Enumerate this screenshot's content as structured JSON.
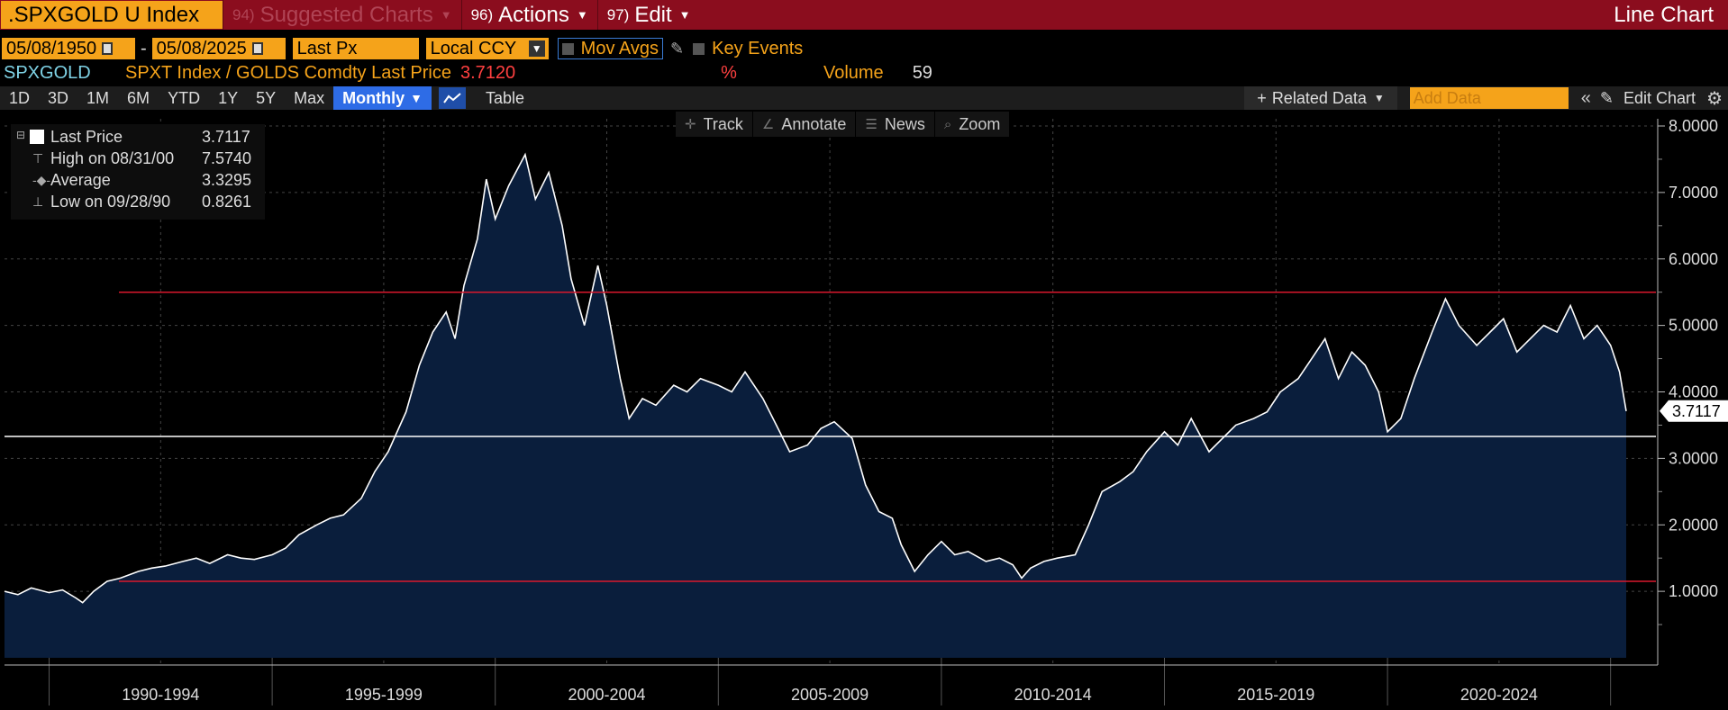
{
  "topbar": {
    "ticker": ".SPXGOLD U Index",
    "suggested": {
      "num": "94)",
      "label": "Suggested Charts"
    },
    "actions": {
      "num": "96)",
      "label": "Actions"
    },
    "edit": {
      "num": "97)",
      "label": "Edit"
    },
    "chart_type": "Line Chart"
  },
  "controls": {
    "start_date": "05/08/1950",
    "dash": "-",
    "end_date": "05/08/2025",
    "price_field": "Last Px",
    "currency": "Local CCY",
    "mov_avgs": "Mov Avgs",
    "key_events": "Key Events"
  },
  "security": {
    "code": "SPXGOLD",
    "description": "SPXT Index / GOLDS Comdty Last Price",
    "last_value": "3.7120",
    "pct": "%",
    "volume_label": "Volume",
    "volume_value": "59"
  },
  "toolbar": {
    "periods": [
      "1D",
      "3D",
      "1M",
      "6M",
      "YTD",
      "1Y",
      "5Y",
      "Max"
    ],
    "frequency": "Monthly",
    "table": "Table",
    "related_data": "Related Data",
    "add_data_placeholder": "Add Data",
    "edit_chart": "Edit Chart"
  },
  "chart_tools": [
    "Track",
    "Annotate",
    "News",
    "Zoom"
  ],
  "legend": {
    "last_price": {
      "label": "Last Price",
      "value": "3.7117"
    },
    "high": {
      "label": "High on 08/31/00",
      "value": "7.5740"
    },
    "average": {
      "label": "Average",
      "value": "3.3295"
    },
    "low": {
      "label": "Low on 09/28/90",
      "value": "0.8261"
    }
  },
  "colors": {
    "line": "#ffffff",
    "area": "#0a1e3c",
    "average_line": "#ffffff",
    "high_low_lines": "#d9182d",
    "accent_orange": "#f5a31a",
    "header_red": "#8b0d1e"
  },
  "chart_data": {
    "type": "area",
    "series": [
      {
        "name": "Last Price",
        "x": [
          1989.0,
          1989.3,
          1989.6,
          1990.0,
          1990.3,
          1990.6,
          1990.75,
          1991.0,
          1991.3,
          1991.6,
          1992.0,
          1992.3,
          1992.6,
          1993.0,
          1993.3,
          1993.6,
          1994.0,
          1994.3,
          1994.6,
          1995.0,
          1995.3,
          1995.6,
          1996.0,
          1996.3,
          1996.6,
          1997.0,
          1997.3,
          1997.6,
          1998.0,
          1998.3,
          1998.6,
          1998.9,
          1999.1,
          1999.3,
          1999.6,
          1999.8,
          2000.0,
          2000.3,
          2000.67,
          2000.9,
          2001.2,
          2001.5,
          2001.7,
          2002.0,
          2002.3,
          2002.5,
          2002.8,
          2003.0,
          2003.3,
          2003.6,
          2004.0,
          2004.3,
          2004.6,
          2005.0,
          2005.3,
          2005.6,
          2006.0,
          2006.3,
          2006.6,
          2007.0,
          2007.3,
          2007.6,
          2008.0,
          2008.3,
          2008.6,
          2008.9,
          2009.1,
          2009.4,
          2009.7,
          2010.0,
          2010.3,
          2010.6,
          2011.0,
          2011.3,
          2011.6,
          2011.8,
          2012.0,
          2012.3,
          2012.6,
          2013.0,
          2013.3,
          2013.6,
          2014.0,
          2014.3,
          2014.6,
          2015.0,
          2015.3,
          2015.6,
          2016.0,
          2016.3,
          2016.6,
          2017.0,
          2017.3,
          2017.6,
          2018.0,
          2018.3,
          2018.6,
          2018.9,
          2019.2,
          2019.5,
          2019.8,
          2020.0,
          2020.3,
          2020.6,
          2021.0,
          2021.3,
          2021.6,
          2022.0,
          2022.3,
          2022.6,
          2022.9,
          2023.2,
          2023.5,
          2023.8,
          2024.1,
          2024.4,
          2024.7,
          2025.0,
          2025.2,
          2025.35
        ],
        "y": [
          1.0,
          0.95,
          1.05,
          0.98,
          1.02,
          0.9,
          0.83,
          1.0,
          1.15,
          1.2,
          1.3,
          1.35,
          1.38,
          1.45,
          1.5,
          1.42,
          1.55,
          1.5,
          1.48,
          1.55,
          1.65,
          1.85,
          2.0,
          2.1,
          2.15,
          2.4,
          2.8,
          3.1,
          3.7,
          4.4,
          4.9,
          5.2,
          4.8,
          5.6,
          6.3,
          7.2,
          6.6,
          7.1,
          7.57,
          6.9,
          7.3,
          6.5,
          5.7,
          5.0,
          5.9,
          5.3,
          4.2,
          3.6,
          3.9,
          3.8,
          4.1,
          4.0,
          4.2,
          4.1,
          4.0,
          4.3,
          3.9,
          3.5,
          3.1,
          3.2,
          3.45,
          3.55,
          3.3,
          2.6,
          2.2,
          2.1,
          1.7,
          1.3,
          1.55,
          1.75,
          1.55,
          1.6,
          1.45,
          1.5,
          1.4,
          1.2,
          1.35,
          1.45,
          1.5,
          1.55,
          2.0,
          2.5,
          2.65,
          2.8,
          3.1,
          3.4,
          3.2,
          3.6,
          3.1,
          3.3,
          3.5,
          3.6,
          3.7,
          4.0,
          4.2,
          4.5,
          4.8,
          4.2,
          4.6,
          4.4,
          4.0,
          3.4,
          3.6,
          4.2,
          4.9,
          5.4,
          5.0,
          4.7,
          4.9,
          5.1,
          4.6,
          4.8,
          5.0,
          4.9,
          5.3,
          4.8,
          5.0,
          4.7,
          4.3,
          3.71
        ],
        "last": 3.7117,
        "high": 7.574,
        "average": 3.3295,
        "low": 0.8261
      }
    ],
    "x_labels": [
      "1990-1994",
      "1995-1999",
      "2000-2004",
      "2005-2009",
      "2010-2014",
      "2015-2019",
      "2020-2024"
    ],
    "y_ticks": [
      "1.0000",
      "2.0000",
      "3.0000",
      "4.0000",
      "5.0000",
      "6.0000",
      "7.0000",
      "8.0000"
    ],
    "ylim": [
      0.0,
      8.0
    ],
    "xlim": [
      1989.0,
      2025.35
    ],
    "reference_lines": {
      "upper_red": 5.5,
      "lower_red": 1.15,
      "average_white": 3.3295
    },
    "last_label": "3.7117",
    "grid": true,
    "y_axis_side": "right",
    "legend_position": "top-left"
  }
}
